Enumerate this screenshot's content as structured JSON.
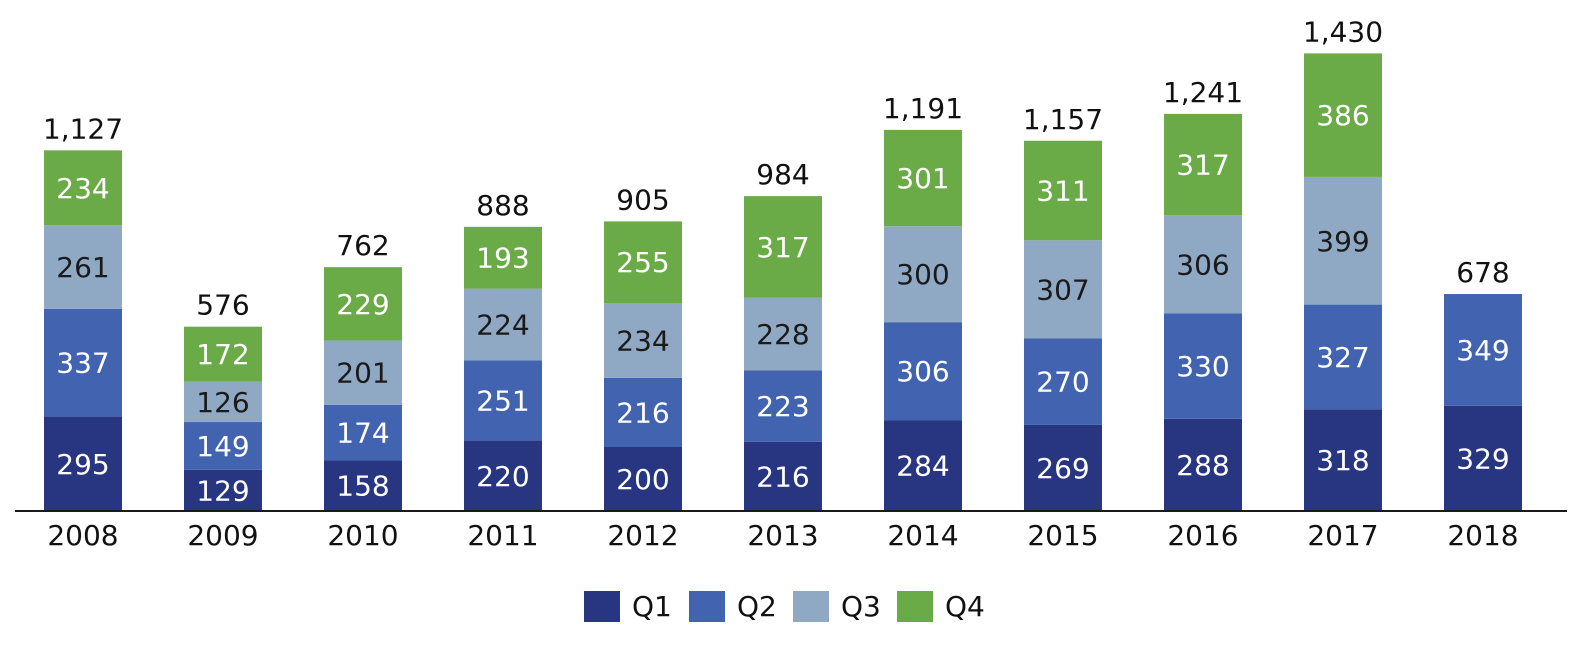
{
  "chart_data": {
    "type": "bar",
    "stacked": true,
    "categories": [
      "2008",
      "2009",
      "2010",
      "2011",
      "2012",
      "2013",
      "2014",
      "2015",
      "2016",
      "2017",
      "2018"
    ],
    "series": [
      {
        "name": "Q1",
        "color": "#283580",
        "values": [
          295,
          129,
          158,
          220,
          200,
          216,
          284,
          269,
          288,
          318,
          329
        ]
      },
      {
        "name": "Q2",
        "color": "#4264b0",
        "values": [
          337,
          149,
          174,
          251,
          216,
          223,
          306,
          270,
          330,
          327,
          349
        ]
      },
      {
        "name": "Q3",
        "color": "#8fa9c4",
        "values": [
          261,
          126,
          201,
          224,
          234,
          228,
          300,
          307,
          306,
          399,
          null
        ]
      },
      {
        "name": "Q4",
        "color": "#6aab47",
        "values": [
          234,
          172,
          229,
          193,
          255,
          317,
          301,
          311,
          317,
          386,
          null
        ]
      }
    ],
    "totals": [
      "1,127",
      "576",
      "762",
      "888",
      "905",
      "984",
      "1,191",
      "1,157",
      "1,241",
      "1,430",
      "678"
    ],
    "ylim": [
      0,
      1450
    ],
    "grid": false,
    "legend": "bottom-center"
  }
}
